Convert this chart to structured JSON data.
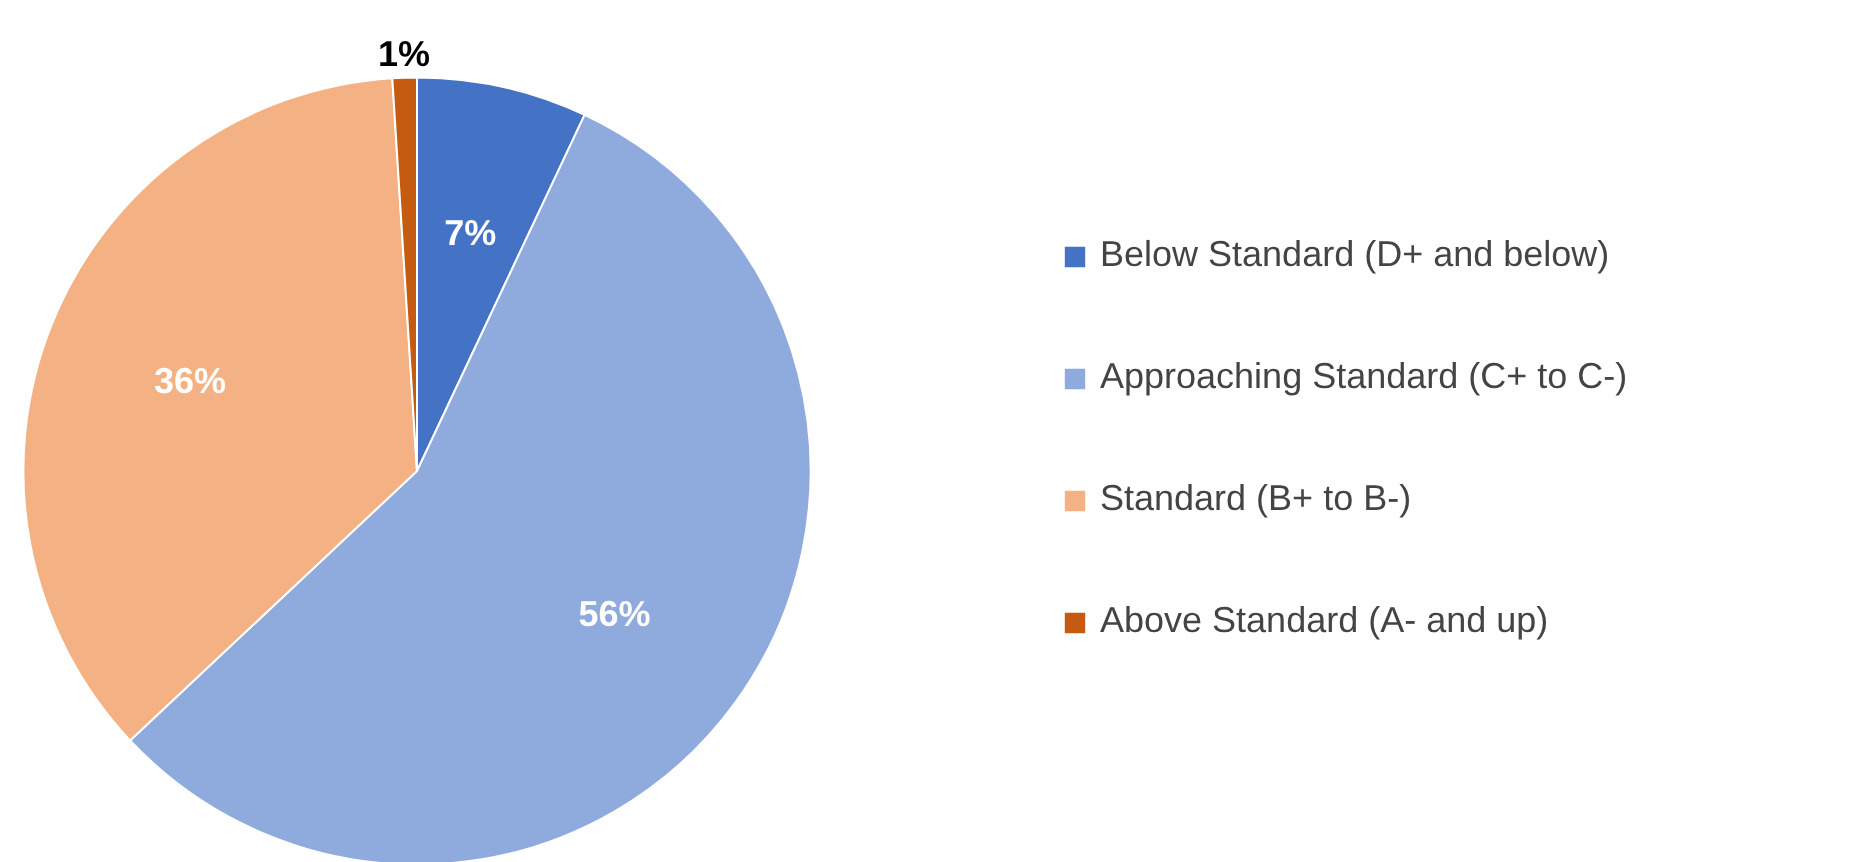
{
  "chart_data": {
    "type": "pie",
    "categories": [
      "Below Standard (D+ and below)",
      "Approaching Standard (C+ to C-)",
      "Standard (B+ to B-)",
      "Above Standard (A- and up)"
    ],
    "values": [
      7,
      56,
      36,
      1
    ],
    "colors": [
      "#4472c4",
      "#8faadc",
      "#f4b183",
      "#c55a11"
    ],
    "value_labels": [
      "7%",
      "56%",
      "36%",
      "1%"
    ],
    "legend": "right"
  }
}
